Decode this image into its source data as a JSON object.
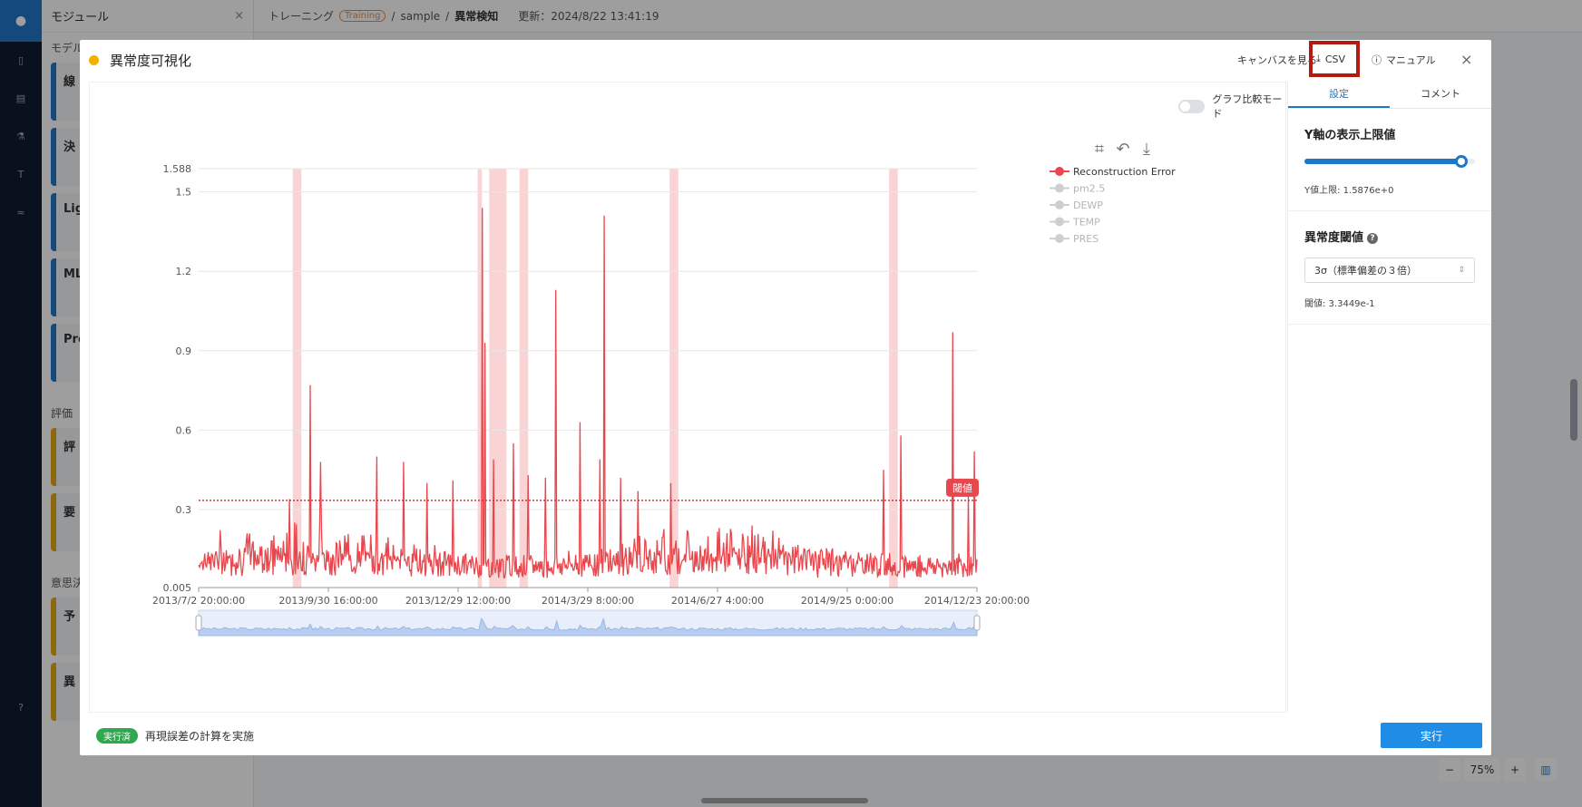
{
  "app": {
    "sidebar_title": "モジュール",
    "sidebar_close": "×",
    "sidebar_section_models": "モデル",
    "model_cards": [
      "線",
      "決",
      "Lig",
      "ML",
      "Pro"
    ],
    "sidebar_section_eval": "評価",
    "eval_cards": [
      "評",
      "要"
    ],
    "sidebar_section_decision": "意思決",
    "decision_cards": [
      "予",
      "異"
    ]
  },
  "breadcrumb": {
    "root": "トレーニング",
    "badge": "Training",
    "sep1": "/",
    "project": "sample",
    "sep2": "/",
    "page": "異常検知",
    "updated": "更新：2024/8/22 13:41:19"
  },
  "zoom": {
    "minus": "−",
    "level": "75%",
    "plus": "+"
  },
  "modal": {
    "title": "異常度可視化",
    "view_canvas": "キャンバスを見る",
    "csv": "CSV",
    "manual": "マニュアル",
    "close": "×",
    "compare_mode": "グラフ比較モード"
  },
  "settings": {
    "tab_settings": "設定",
    "tab_comment": "コメント",
    "ymax_title": "Y軸の表示上限値",
    "ymax_fraction": 0.92,
    "ymax_value": "Y値上限: 1.5876e+0",
    "threshold_title": "異常度閾値",
    "threshold_help": "?",
    "threshold_option": "3σ（標準偏差の３倍）",
    "threshold_value": "閾値: 3.3449e-1"
  },
  "footer": {
    "status_badge": "実行済",
    "status_message": "再現誤差の計算を実施",
    "run_button": "実行"
  },
  "colors": {
    "error_line": "#e8474d",
    "band": "#f9c9c9",
    "accent": "#1f77c9"
  },
  "chart_data": {
    "type": "line",
    "y_ticks": [
      "0.005",
      "0.3",
      "0.6",
      "0.9",
      "1.2",
      "1.5",
      "1.588"
    ],
    "y_tick_values": [
      0.005,
      0.3,
      0.6,
      0.9,
      1.2,
      1.5,
      1.588
    ],
    "ylim": [
      0.005,
      1.588
    ],
    "x_ticks": [
      "2013/7/2 20:00:00",
      "2013/9/30 16:00:00",
      "2013/12/29 12:00:00",
      "2014/3/29 8:00:00",
      "2014/6/27 4:00:00",
      "2014/9/25 0:00:00",
      "2014/12/23 20:00:00"
    ],
    "legend": [
      {
        "name": "Reconstruction Error",
        "active": true
      },
      {
        "name": "pm2.5",
        "active": false
      },
      {
        "name": "DEWP",
        "active": false
      },
      {
        "name": "TEMP",
        "active": false
      },
      {
        "name": "PRES",
        "active": false
      }
    ],
    "threshold": 0.3345,
    "threshold_label": "閾値",
    "spikes": [
      {
        "x": "2013/9/4",
        "y": 0.34
      },
      {
        "x": "2013/9/18",
        "y": 0.77
      },
      {
        "x": "2013/9/25",
        "y": 0.48
      },
      {
        "x": "2013/11/3",
        "y": 0.5
      },
      {
        "x": "2013/11/22",
        "y": 0.48
      },
      {
        "x": "2013/12/8",
        "y": 0.4
      },
      {
        "x": "2013/12/26",
        "y": 0.41
      },
      {
        "x": "2014/1/15",
        "y": 1.44
      },
      {
        "x": "2014/1/17",
        "y": 0.93
      },
      {
        "x": "2014/1/23",
        "y": 0.49
      },
      {
        "x": "2014/2/6",
        "y": 0.55
      },
      {
        "x": "2014/2/16",
        "y": 0.43
      },
      {
        "x": "2014/2/28",
        "y": 0.42
      },
      {
        "x": "2014/3/7",
        "y": 1.13
      },
      {
        "x": "2014/3/24",
        "y": 0.63
      },
      {
        "x": "2014/4/7",
        "y": 0.49
      },
      {
        "x": "2014/4/10",
        "y": 1.41
      },
      {
        "x": "2014/4/21",
        "y": 0.42
      },
      {
        "x": "2014/5/3",
        "y": 0.37
      },
      {
        "x": "2014/5/26",
        "y": 0.4
      },
      {
        "x": "2014/10/20",
        "y": 0.45
      },
      {
        "x": "2014/11/1",
        "y": 0.58
      },
      {
        "x": "2014/12/7",
        "y": 0.97
      },
      {
        "x": "2014/12/18",
        "y": 0.35
      },
      {
        "x": "2014/12/22",
        "y": 0.52
      }
    ],
    "anomaly_bands": [
      {
        "start": "2013/9/6",
        "end": "2013/9/12"
      },
      {
        "start": "2014/1/12",
        "end": "2014/1/15"
      },
      {
        "start": "2014/1/20",
        "end": "2014/2/1"
      },
      {
        "start": "2014/2/10",
        "end": "2014/2/16"
      },
      {
        "start": "2014/5/25",
        "end": "2014/5/31"
      },
      {
        "start": "2014/10/24",
        "end": "2014/10/30"
      }
    ]
  }
}
